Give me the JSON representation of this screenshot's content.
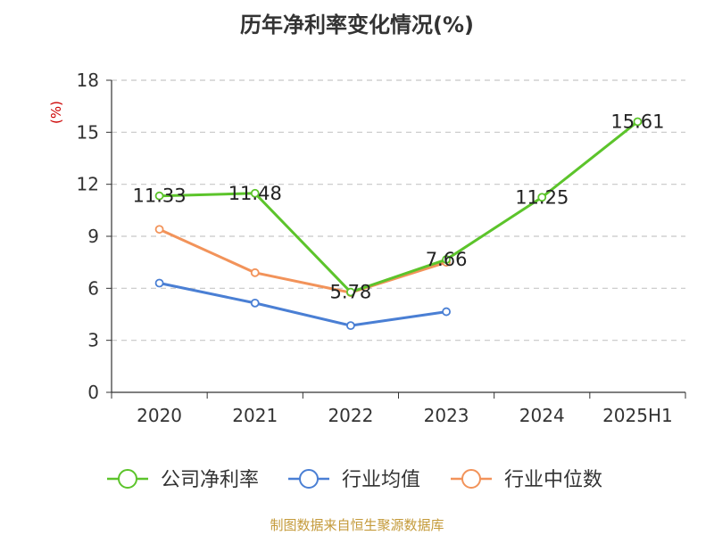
{
  "chart_data": {
    "type": "line",
    "title": "历年净利率变化情况(%)",
    "ylabel": "(%)",
    "categories": [
      "2020",
      "2021",
      "2022",
      "2023",
      "2024",
      "2025H1"
    ],
    "ylim": [
      0,
      18
    ],
    "yticks": [
      0,
      3,
      6,
      9,
      12,
      15,
      18
    ],
    "grid": true,
    "legend_position": "bottom",
    "series": [
      {
        "name": "公司净利率",
        "color": "#5cc42b",
        "values": [
          11.33,
          11.48,
          5.78,
          7.66,
          11.25,
          15.61
        ],
        "labels": [
          "11.33",
          "11.48",
          "5.78",
          "7.66",
          "11.25",
          "15.61"
        ]
      },
      {
        "name": "行业均值",
        "color": "#4a7fd4",
        "values": [
          6.3,
          5.15,
          3.85,
          4.65,
          null,
          null
        ]
      },
      {
        "name": "行业中位数",
        "color": "#f2935a",
        "values": [
          9.4,
          6.9,
          5.75,
          7.5,
          null,
          null
        ]
      }
    ]
  },
  "footer": "制图数据来自恒生聚源数据库"
}
